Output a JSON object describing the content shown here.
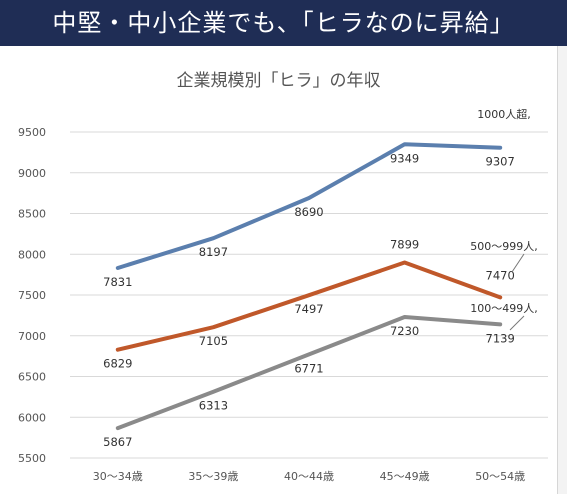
{
  "banner": {
    "title": "中堅・中小企業でも、「ヒラなのに昇給」"
  },
  "colors": {
    "banner_bg": "#1f2d55",
    "grid": "#d9d9d9"
  },
  "chart_data": {
    "type": "line",
    "title": "企業規模別「ヒラ」の年収",
    "xlabel": "",
    "ylabel": "",
    "categories": [
      "30～34歳",
      "35～39歳",
      "40～44歳",
      "45～49歳",
      "50～54歳"
    ],
    "ylim": [
      5500,
      9500
    ],
    "yticks": [
      5500,
      6000,
      6500,
      7000,
      7500,
      8000,
      8500,
      9000,
      9500
    ],
    "grid": true,
    "legend": "none",
    "series": [
      {
        "name": "1000人超,",
        "color": "#5b7fae",
        "values": [
          7831,
          8197,
          8690,
          9349,
          9307
        ],
        "labels": [
          "7831",
          "8197",
          "8690",
          "9349",
          "9307"
        ]
      },
      {
        "name": "500～999人,",
        "color": "#c0582a",
        "values": [
          6829,
          7105,
          7497,
          7899,
          7470
        ],
        "labels": [
          "6829",
          "7105",
          "7497",
          "7899",
          "7470"
        ]
      },
      {
        "name": "100～499人,",
        "color": "#8a8a8a",
        "values": [
          5867,
          6313,
          6771,
          7230,
          7139
        ],
        "labels": [
          "5867",
          "6313",
          "6771",
          "7230",
          "7139"
        ]
      }
    ]
  }
}
